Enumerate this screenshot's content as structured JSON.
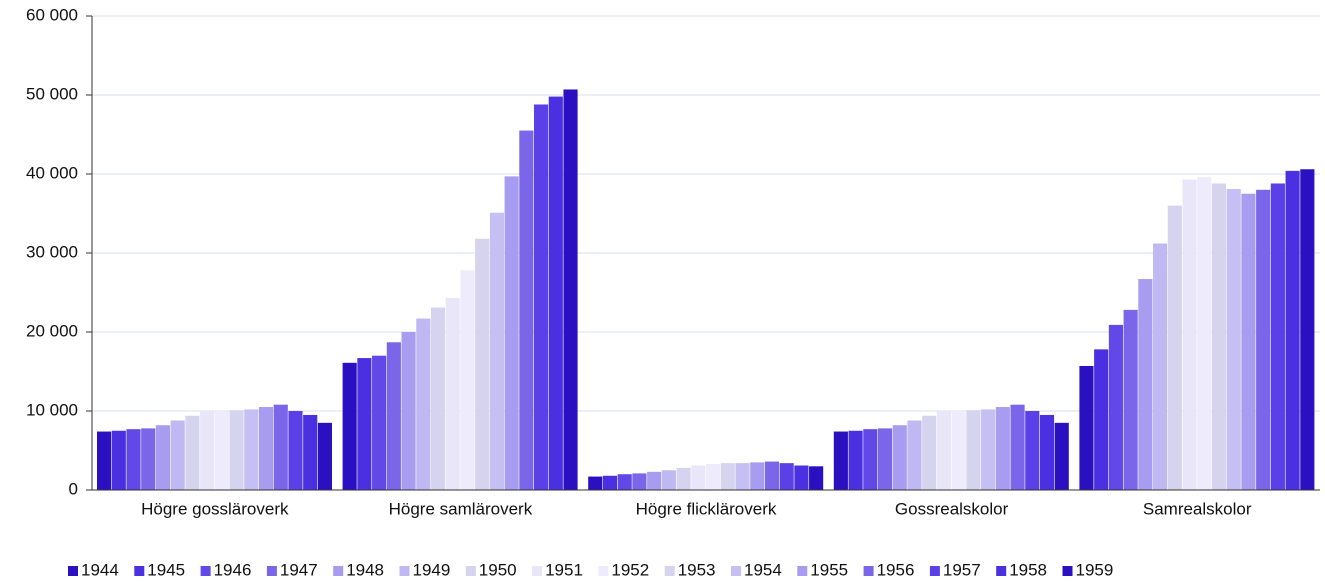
{
  "chart_data": {
    "type": "bar",
    "categories": [
      "Högre gossläroverk",
      "Högre samläroverk",
      "Högre flickläroverk",
      "Gossrealskolor",
      "Samrealskolor"
    ],
    "series": [
      {
        "name": "1944",
        "color": "#2a10c0",
        "values": [
          7400,
          16100,
          1700,
          7400,
          15700
        ]
      },
      {
        "name": "1945",
        "color": "#4a30e0",
        "values": [
          7500,
          16700,
          1800,
          7500,
          17800
        ]
      },
      {
        "name": "1946",
        "color": "#6248e6",
        "values": [
          7700,
          17000,
          2000,
          7700,
          20900
        ]
      },
      {
        "name": "1947",
        "color": "#7b66ea",
        "values": [
          7800,
          18700,
          2100,
          7800,
          22800
        ]
      },
      {
        "name": "1948",
        "color": "#a79cef",
        "values": [
          8200,
          20000,
          2300,
          8200,
          26700
        ]
      },
      {
        "name": "1949",
        "color": "#c0b8f2",
        "values": [
          8800,
          21700,
          2500,
          8800,
          31200
        ]
      },
      {
        "name": "1950",
        "color": "#d6d3ee",
        "values": [
          9400,
          23100,
          2800,
          9400,
          36000
        ]
      },
      {
        "name": "1951",
        "color": "#e9e6fa",
        "values": [
          9900,
          24300,
          3100,
          9900,
          39300
        ]
      },
      {
        "name": "1952",
        "color": "#eeebfc",
        "values": [
          10000,
          27800,
          3300,
          10000,
          39600
        ]
      },
      {
        "name": "1953",
        "color": "#d6d3ee",
        "values": [
          10100,
          31800,
          3400,
          10100,
          38800
        ]
      },
      {
        "name": "1954",
        "color": "#c6bff4",
        "values": [
          10200,
          35100,
          3400,
          10200,
          38100
        ]
      },
      {
        "name": "1955",
        "color": "#a79cef",
        "values": [
          10500,
          39700,
          3500,
          10500,
          37500
        ]
      },
      {
        "name": "1956",
        "color": "#7b66ea",
        "values": [
          10800,
          45500,
          3600,
          10800,
          38000
        ]
      },
      {
        "name": "1957",
        "color": "#5a40e6",
        "values": [
          10000,
          48800,
          3400,
          10000,
          38800
        ]
      },
      {
        "name": "1958",
        "color": "#4a30e0",
        "values": [
          9500,
          49800,
          3100,
          9500,
          40400
        ]
      },
      {
        "name": "1959",
        "color": "#2a10c0",
        "values": [
          8500,
          50700,
          3000,
          8500,
          40600
        ]
      }
    ],
    "ylim": [
      0,
      60000
    ],
    "yticks": [
      0,
      {
        "value": 10000,
        "label": "10 000"
      },
      {
        "value": 20000,
        "label": "20 000"
      },
      {
        "value": 30000,
        "label": "30 000"
      },
      {
        "value": 40000,
        "label": "40 000"
      },
      {
        "value": 50000,
        "label": "50 000"
      },
      {
        "value": 60000,
        "label": "60 000"
      }
    ],
    "grid": true,
    "legend": "bottom"
  }
}
